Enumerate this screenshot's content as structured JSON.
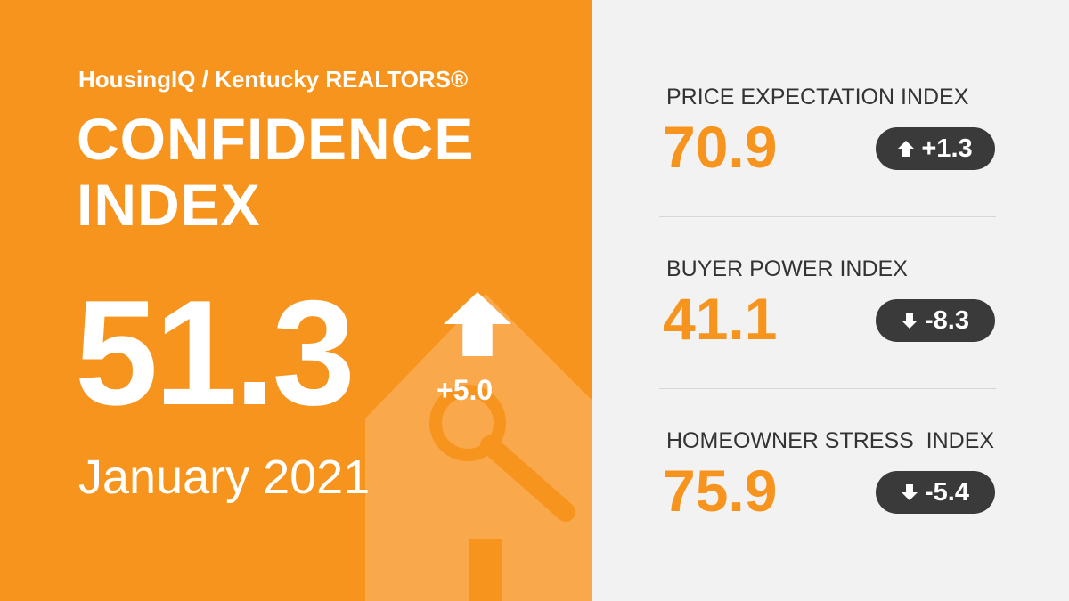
{
  "brand": "HousingIQ / Kentucky REALTORS®",
  "title_lines": [
    "CONFIDENCE",
    "INDEX"
  ],
  "headline": {
    "value": "51.3",
    "change": "+5.0",
    "direction": "up",
    "period": "January 2021"
  },
  "indices": [
    {
      "label": "PRICE EXPECTATION INDEX",
      "value": "70.9",
      "change": "+1.3",
      "direction": "up"
    },
    {
      "label": "BUYER POWER INDEX",
      "value": "41.1",
      "change": "-8.3",
      "direction": "down"
    },
    {
      "label": "HOMEOWNER STRESS  INDEX",
      "value": "75.9",
      "change": "-5.4",
      "direction": "down"
    }
  ]
}
